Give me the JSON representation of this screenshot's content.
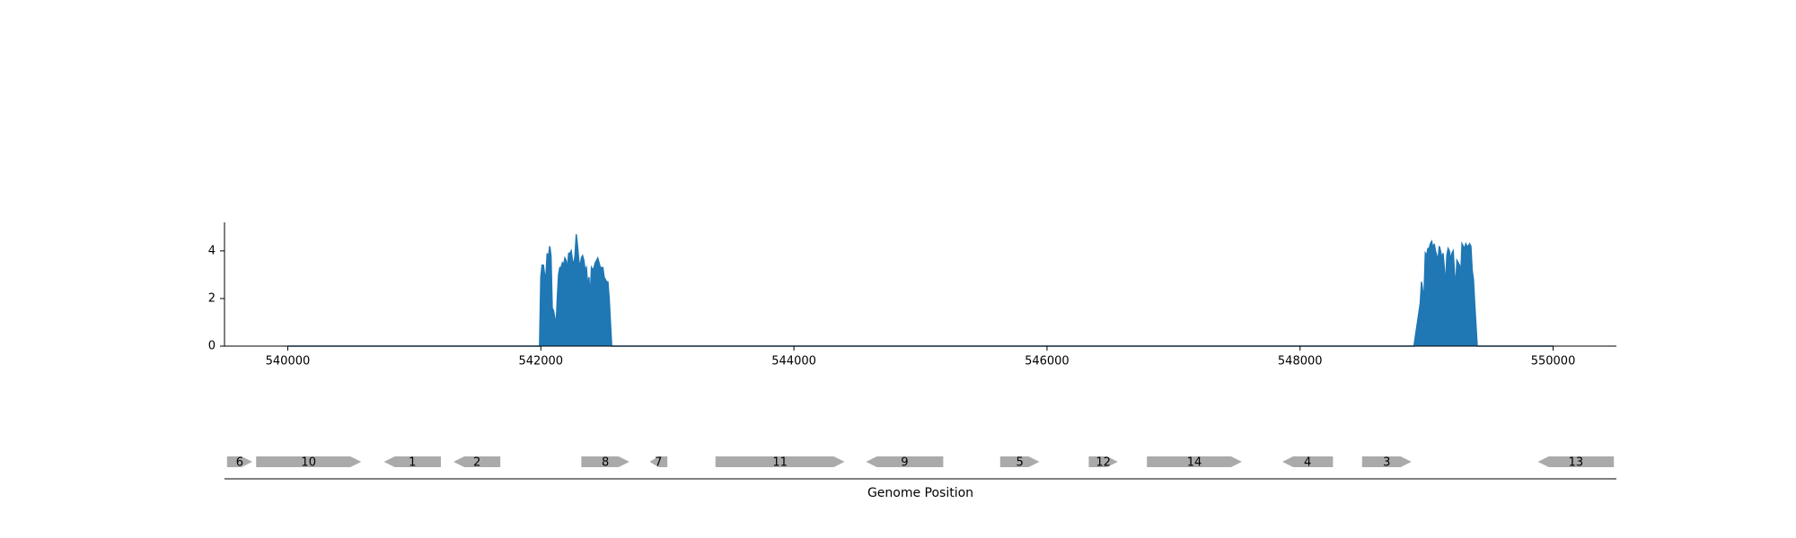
{
  "chart_data": [
    {
      "type": "area",
      "title": "",
      "xlabel": "",
      "ylabel": "",
      "xlim": [
        539500,
        550500
      ],
      "ylim": [
        0,
        5.2
      ],
      "x_ticks": [
        540000,
        542000,
        544000,
        546000,
        548000,
        550000
      ],
      "y_ticks": [
        0,
        2,
        4
      ],
      "color": "#1f77b4",
      "series": [
        {
          "values": [
            [
              540000,
              0
            ],
            [
              541990,
              0
            ],
            [
              542000,
              2.9
            ],
            [
              542010,
              3.4
            ],
            [
              542020,
              3.4
            ],
            [
              542030,
              3.0
            ],
            [
              542040,
              2.9
            ],
            [
              542050,
              3.9
            ],
            [
              542060,
              3.7
            ],
            [
              542070,
              4.2
            ],
            [
              542080,
              3.8
            ],
            [
              542090,
              1.6
            ],
            [
              542100,
              1.5
            ],
            [
              542110,
              1.2
            ],
            [
              542120,
              0.8
            ],
            [
              542130,
              2.0
            ],
            [
              542140,
              3.0
            ],
            [
              542150,
              3.3
            ],
            [
              542160,
              3.3
            ],
            [
              542170,
              3.5
            ],
            [
              542180,
              3.4
            ],
            [
              542190,
              3.7
            ],
            [
              542200,
              3.6
            ],
            [
              542210,
              3.2
            ],
            [
              542220,
              3.9
            ],
            [
              542230,
              3.9
            ],
            [
              542240,
              4.0
            ],
            [
              542250,
              3.6
            ],
            [
              542260,
              3.4
            ],
            [
              542270,
              3.8
            ],
            [
              542280,
              4.7
            ],
            [
              542290,
              4.2
            ],
            [
              542300,
              3.6
            ],
            [
              542310,
              3.3
            ],
            [
              542320,
              3.7
            ],
            [
              542330,
              3.8
            ],
            [
              542340,
              3.6
            ],
            [
              542350,
              3.2
            ],
            [
              542360,
              3.3
            ],
            [
              542370,
              2.5
            ],
            [
              542380,
              2.9
            ],
            [
              542390,
              2.0
            ],
            [
              542400,
              3.3
            ],
            [
              542410,
              3.2
            ],
            [
              542420,
              3.3
            ],
            [
              542430,
              3.5
            ],
            [
              542440,
              3.6
            ],
            [
              542450,
              3.7
            ],
            [
              542460,
              3.5
            ],
            [
              542470,
              3.3
            ],
            [
              542480,
              3.3
            ],
            [
              542490,
              3.3
            ],
            [
              542500,
              2.9
            ],
            [
              542510,
              2.8
            ],
            [
              542520,
              2.7
            ],
            [
              542530,
              2.7
            ],
            [
              542540,
              2.0
            ],
            [
              542560,
              0
            ],
            [
              548900,
              0
            ],
            [
              548950,
              1.8
            ],
            [
              548960,
              2.7
            ],
            [
              548970,
              2.3
            ],
            [
              548980,
              2.2
            ],
            [
              548990,
              3.9
            ],
            [
              549000,
              3.8
            ],
            [
              549010,
              4.1
            ],
            [
              549020,
              4.1
            ],
            [
              549030,
              4.3
            ],
            [
              549040,
              4.4
            ],
            [
              549050,
              4.1
            ],
            [
              549060,
              4.3
            ],
            [
              549070,
              4.0
            ],
            [
              549080,
              3.8
            ],
            [
              549090,
              3.6
            ],
            [
              549100,
              4.2
            ],
            [
              549110,
              4.0
            ],
            [
              549120,
              3.7
            ],
            [
              549130,
              3.9
            ],
            [
              549140,
              3.3
            ],
            [
              549150,
              2.5
            ],
            [
              549160,
              3.8
            ],
            [
              549170,
              4.1
            ],
            [
              549180,
              4.0
            ],
            [
              549190,
              3.6
            ],
            [
              549200,
              3.9
            ],
            [
              549210,
              4.0
            ],
            [
              549220,
              3.1
            ],
            [
              549230,
              2.5
            ],
            [
              549240,
              3.6
            ],
            [
              549250,
              3.5
            ],
            [
              549260,
              3.4
            ],
            [
              549270,
              3.0
            ],
            [
              549280,
              4.3
            ],
            [
              549290,
              4.2
            ],
            [
              549300,
              4.1
            ],
            [
              549310,
              4.3
            ],
            [
              549320,
              4.2
            ],
            [
              549330,
              4.2
            ],
            [
              549340,
              4.3
            ],
            [
              549350,
              4.2
            ],
            [
              549360,
              3.2
            ],
            [
              549370,
              2.8
            ],
            [
              549380,
              1.8
            ],
            [
              549400,
              0
            ],
            [
              550000,
              0
            ]
          ]
        }
      ]
    },
    {
      "type": "gene-track",
      "title": "",
      "xlabel": "Genome Position",
      "xlim": [
        539500,
        550500
      ],
      "color": "#aaaaaa",
      "genes": [
        {
          "label": "6",
          "start": 539520,
          "end": 539720,
          "strand": "+"
        },
        {
          "label": "10",
          "start": 539750,
          "end": 540580,
          "strand": "+"
        },
        {
          "label": "1",
          "start": 540760,
          "end": 541210,
          "strand": "-"
        },
        {
          "label": "2",
          "start": 541310,
          "end": 541680,
          "strand": "-"
        },
        {
          "label": "8",
          "start": 542320,
          "end": 542700,
          "strand": "+"
        },
        {
          "label": "7",
          "start": 542860,
          "end": 543000,
          "strand": "-"
        },
        {
          "label": "11",
          "start": 543380,
          "end": 544400,
          "strand": "+"
        },
        {
          "label": "9",
          "start": 544570,
          "end": 545180,
          "strand": "-"
        },
        {
          "label": "5",
          "start": 545630,
          "end": 545940,
          "strand": "+"
        },
        {
          "label": "12",
          "start": 546330,
          "end": 546560,
          "strand": "+"
        },
        {
          "label": "14",
          "start": 546790,
          "end": 547540,
          "strand": "+"
        },
        {
          "label": "4",
          "start": 547860,
          "end": 548260,
          "strand": "-"
        },
        {
          "label": "3",
          "start": 548490,
          "end": 548880,
          "strand": "+"
        },
        {
          "label": "13",
          "start": 549880,
          "end": 550480,
          "strand": "-"
        }
      ]
    }
  ]
}
